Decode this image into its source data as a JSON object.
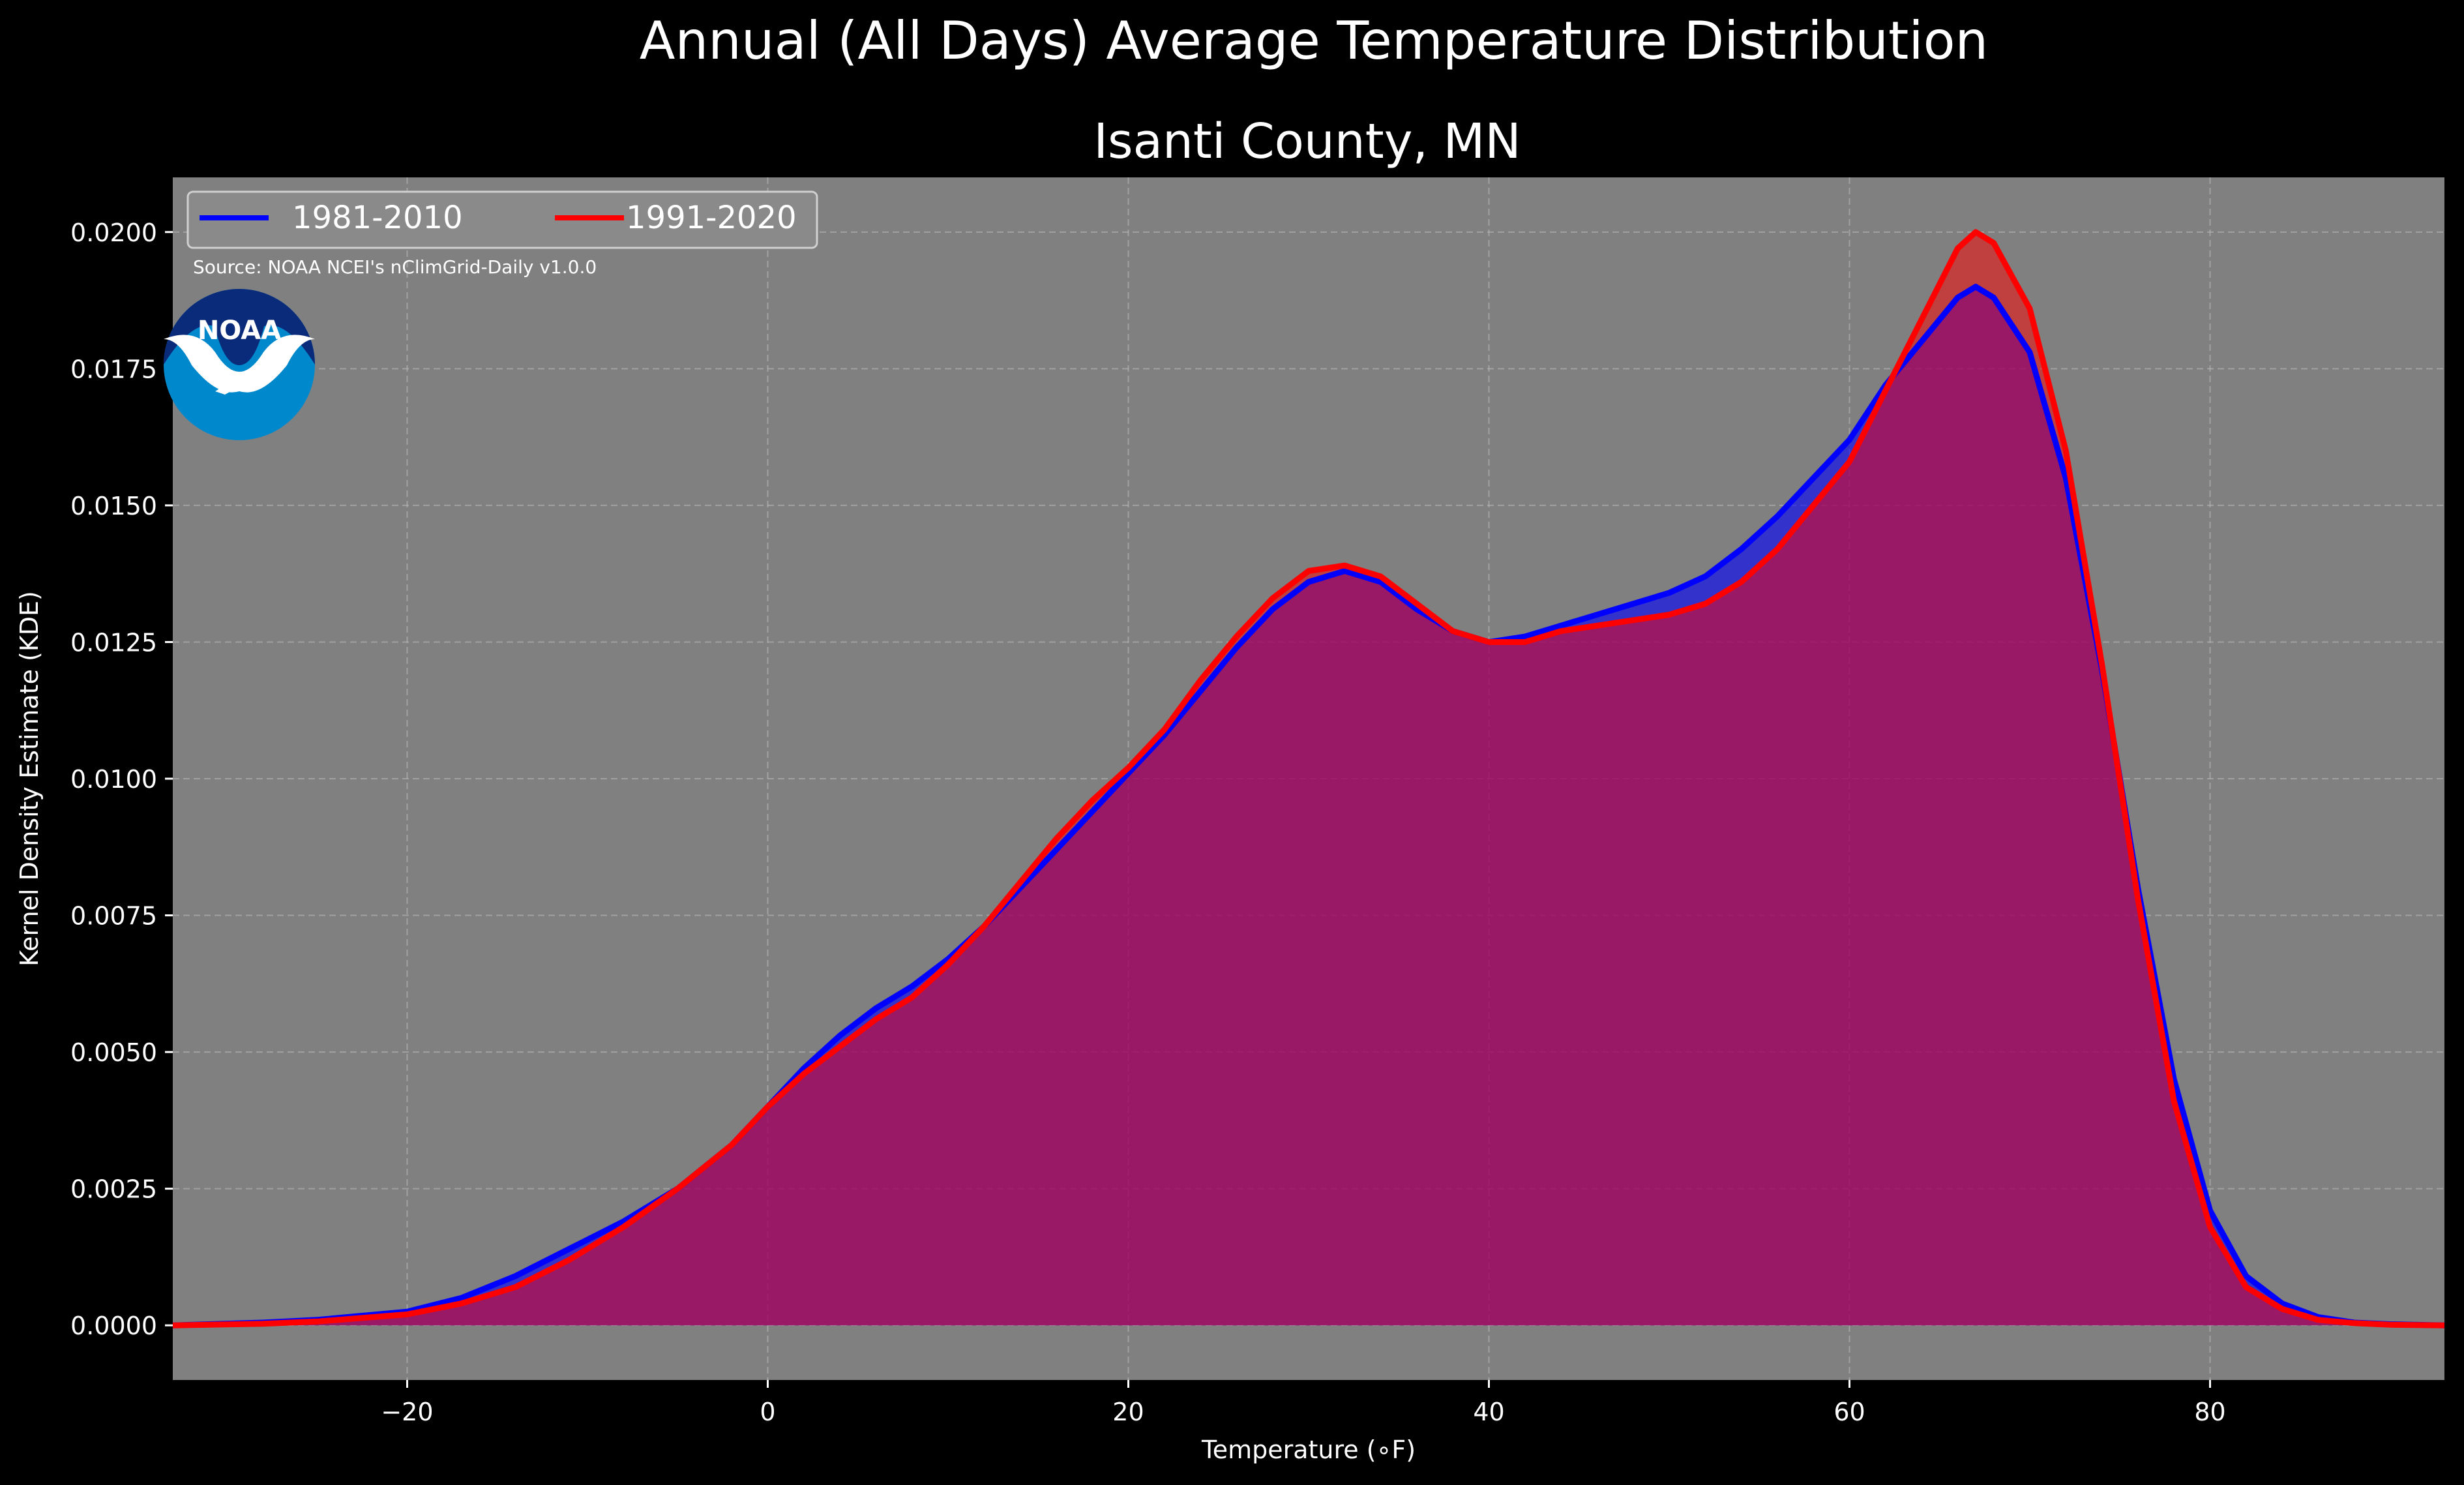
{
  "figure": {
    "suptitle": "Annual (All Days) Average Temperature Distribution",
    "title": "Isanti County, MN",
    "source": "Source: NOAA NCEI's nClimGrid-Daily v1.0.0",
    "logo_text": "NOAA"
  },
  "colors": {
    "background": "#000000",
    "plot_bg": "#808080",
    "grid": "#b8b8b8",
    "series_1981": "#0000ff",
    "series_1991": "#ff0000",
    "logo_dark": "#0a2a7a",
    "logo_light": "#0088cc"
  },
  "chart_data": {
    "type": "area",
    "title": "Isanti County, MN",
    "xlabel": "Temperature (∘F)",
    "ylabel": "Kernel Density Estimate (KDE)",
    "xlim": [
      -33,
      93
    ],
    "ylim": [
      -0.001,
      0.021
    ],
    "xticks": [
      -20,
      0,
      20,
      40,
      60,
      80
    ],
    "xtick_labels": [
      "−20",
      "0",
      "20",
      "40",
      "60",
      "80"
    ],
    "yticks": [
      0.0,
      0.0025,
      0.005,
      0.0075,
      0.01,
      0.0125,
      0.015,
      0.0175,
      0.02
    ],
    "ytick_labels": [
      "0.0000",
      "0.0025",
      "0.0050",
      "0.0075",
      "0.0100",
      "0.0125",
      "0.0150",
      "0.0175",
      "0.0200"
    ],
    "grid": true,
    "legend": "top-left",
    "series": [
      {
        "name": "1981-2010",
        "color": "#0000ff",
        "x": [
          -33,
          -28,
          -25,
          -20,
          -17,
          -14,
          -11,
          -8,
          -5,
          -2,
          0,
          2,
          4,
          6,
          8,
          10,
          12,
          14,
          16,
          18,
          20,
          22,
          24,
          26,
          28,
          30,
          32,
          34,
          36,
          38,
          40,
          42,
          44,
          46,
          48,
          50,
          52,
          54,
          56,
          58,
          60,
          62,
          64,
          66,
          67,
          68,
          70,
          72,
          74,
          76,
          78,
          80,
          82,
          84,
          86,
          88,
          90,
          93
        ],
        "y": [
          0.0,
          5e-05,
          0.0001,
          0.00025,
          0.0005,
          0.0009,
          0.0014,
          0.0019,
          0.0025,
          0.0033,
          0.004,
          0.0047,
          0.0053,
          0.0058,
          0.0062,
          0.0067,
          0.0073,
          0.008,
          0.0087,
          0.0094,
          0.0101,
          0.0108,
          0.0116,
          0.0124,
          0.0131,
          0.0136,
          0.0138,
          0.0136,
          0.0131,
          0.0127,
          0.0125,
          0.0126,
          0.0128,
          0.013,
          0.0132,
          0.0134,
          0.0137,
          0.0142,
          0.0148,
          0.0155,
          0.0162,
          0.0172,
          0.018,
          0.0188,
          0.019,
          0.0188,
          0.0178,
          0.0155,
          0.012,
          0.008,
          0.0045,
          0.0021,
          0.0009,
          0.0004,
          0.00015,
          5e-05,
          2e-05,
          0.0
        ]
      },
      {
        "name": "1991-2020",
        "color": "#ff0000",
        "x": [
          -33,
          -28,
          -25,
          -20,
          -17,
          -14,
          -11,
          -8,
          -5,
          -2,
          0,
          2,
          4,
          6,
          8,
          10,
          12,
          14,
          16,
          18,
          20,
          22,
          24,
          26,
          28,
          30,
          32,
          34,
          36,
          38,
          40,
          42,
          44,
          46,
          48,
          50,
          52,
          54,
          56,
          58,
          60,
          62,
          64,
          66,
          67,
          68,
          70,
          72,
          74,
          76,
          78,
          80,
          82,
          84,
          86,
          88,
          90,
          93
        ],
        "y": [
          0.0,
          3e-05,
          7e-05,
          0.0002,
          0.0004,
          0.0007,
          0.0012,
          0.0018,
          0.0025,
          0.0033,
          0.004,
          0.0046,
          0.0051,
          0.0056,
          0.006,
          0.0066,
          0.0073,
          0.0081,
          0.0089,
          0.0096,
          0.0102,
          0.0109,
          0.0118,
          0.0126,
          0.0133,
          0.0138,
          0.0139,
          0.0137,
          0.0132,
          0.0127,
          0.0125,
          0.0125,
          0.0127,
          0.0128,
          0.0129,
          0.013,
          0.0132,
          0.0136,
          0.0142,
          0.015,
          0.0158,
          0.0171,
          0.0184,
          0.0197,
          0.02,
          0.0198,
          0.0186,
          0.016,
          0.0121,
          0.0078,
          0.0041,
          0.0018,
          0.0007,
          0.0003,
          0.0001,
          4e-05,
          1e-05,
          0.0
        ]
      }
    ]
  }
}
